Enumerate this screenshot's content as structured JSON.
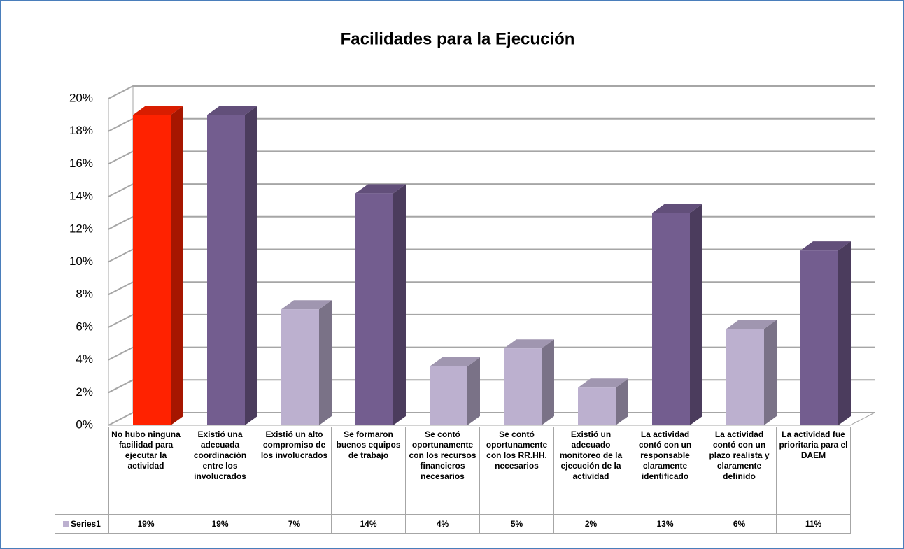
{
  "chart_data": {
    "type": "bar3d",
    "title": "Facilidades para la Ejecución",
    "categories": [
      "No hubo ninguna facilidad para ejecutar la actividad",
      "Existió una adecuada coordinación entre los involucrados",
      "Existió un alto compromiso de los involucrados",
      "Se formaron buenos equipos de trabajo",
      "Se contó oportunamente con los recursos financieros necesarios",
      "Se contó oportunamente con los RR.HH. necesarios",
      "Existió un adecuado monitoreo de la ejecución de la actividad",
      "La actividad contó con un responsable claramente identificado",
      "La actividad contó con un plazo realista y claramente definido",
      "La actividad fue prioritaria para el DAEM"
    ],
    "series": [
      {
        "name": "Series1",
        "color": "#bcb0cf",
        "values": [
          19,
          19,
          7.1,
          14.2,
          3.6,
          4.7,
          2.3,
          13,
          5.9,
          10.7
        ],
        "value_labels": [
          "19%",
          "19%",
          "7%",
          "14%",
          "4%",
          "5%",
          "2%",
          "13%",
          "6%",
          "11%"
        ],
        "colors": [
          "#ff2200",
          "#735d8f",
          "#bcb0cf",
          "#735d8f",
          "#bcb0cf",
          "#bcb0cf",
          "#bcb0cf",
          "#735d8f",
          "#bcb0cf",
          "#735d8f"
        ]
      }
    ],
    "ylim": [
      0,
      20
    ],
    "yticks": [
      {
        "value": 0,
        "label": "0%"
      },
      {
        "value": 2,
        "label": "2%"
      },
      {
        "value": 4,
        "label": "4%"
      },
      {
        "value": 6,
        "label": "6%"
      },
      {
        "value": 8,
        "label": "8%"
      },
      {
        "value": 10,
        "label": "10%"
      },
      {
        "value": 12,
        "label": "12%"
      },
      {
        "value": 14,
        "label": "14%"
      },
      {
        "value": 16,
        "label": "16%"
      },
      {
        "value": 18,
        "label": "18%"
      },
      {
        "value": 20,
        "label": "20%"
      }
    ],
    "grid": true
  }
}
